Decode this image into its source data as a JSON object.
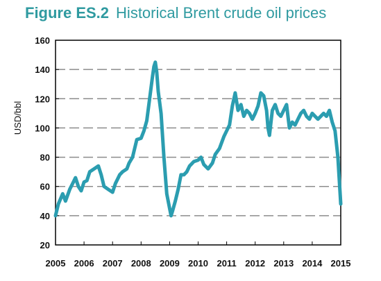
{
  "figure": {
    "number": "Figure ES.2",
    "title": "Historical Brent crude oil prices"
  },
  "colors": {
    "line": "#2b9db0",
    "title": "#2f9aa0",
    "grid": "#8c8c8c",
    "frame": "#000000"
  },
  "chart_data": {
    "type": "line",
    "title": "Historical Brent crude oil prices",
    "xlabel": "",
    "ylabel": "USD/bbl",
    "xlim": [
      2005,
      2015
    ],
    "ylim": [
      20,
      160
    ],
    "x_ticks": [
      "2005",
      "2006",
      "2007",
      "2008",
      "2009",
      "2010",
      "2011",
      "2012",
      "2013",
      "2014",
      "2015"
    ],
    "y_ticks": [
      "20",
      "40",
      "60",
      "80",
      "100",
      "120",
      "140",
      "160"
    ],
    "grid": "horizontal dashed",
    "legend": "none",
    "series": [
      {
        "x": [
          2005.0,
          2005.1,
          2005.25,
          2005.35,
          2005.5,
          2005.6,
          2005.7,
          2005.8,
          2005.9,
          2006.0,
          2006.1,
          2006.2,
          2006.35,
          2006.5,
          2006.6,
          2006.7,
          2006.85,
          2007.0,
          2007.1,
          2007.25,
          2007.35,
          2007.5,
          2007.58,
          2007.7,
          2007.85,
          2008.0,
          2008.1,
          2008.2,
          2008.3,
          2008.4,
          2008.45,
          2008.5,
          2008.55,
          2008.6,
          2008.7,
          2008.8,
          2008.9,
          2009.0,
          2009.05,
          2009.1,
          2009.2,
          2009.3,
          2009.4,
          2009.5,
          2009.6,
          2009.7,
          2009.85,
          2010.0,
          2010.1,
          2010.2,
          2010.35,
          2010.5,
          2010.6,
          2010.75,
          2010.9,
          2011.0,
          2011.1,
          2011.2,
          2011.3,
          2011.4,
          2011.5,
          2011.6,
          2011.7,
          2011.8,
          2011.9,
          2012.0,
          2012.1,
          2012.2,
          2012.3,
          2012.4,
          2012.45,
          2012.5,
          2012.6,
          2012.7,
          2012.8,
          2012.9,
          2013.0,
          2013.1,
          2013.2,
          2013.3,
          2013.4,
          2013.5,
          2013.6,
          2013.7,
          2013.8,
          2013.9,
          2014.0,
          2014.1,
          2014.2,
          2014.3,
          2014.4,
          2014.5,
          2014.6,
          2014.7,
          2014.8,
          2014.9,
          2015.0
        ],
        "y": [
          40,
          48,
          55,
          50,
          58,
          62,
          66,
          60,
          57,
          63,
          64,
          70,
          72,
          74,
          68,
          60,
          58,
          56,
          62,
          68,
          70,
          72,
          76,
          80,
          92,
          93,
          98,
          105,
          120,
          135,
          142,
          145,
          138,
          125,
          110,
          80,
          55,
          45,
          40,
          43,
          50,
          58,
          68,
          68,
          70,
          74,
          77,
          78,
          80,
          75,
          72,
          76,
          82,
          86,
          94,
          98,
          102,
          115,
          124,
          112,
          116,
          108,
          112,
          110,
          106,
          110,
          115,
          124,
          122,
          112,
          100,
          95,
          112,
          116,
          110,
          108,
          112,
          116,
          100,
          104,
          102,
          106,
          110,
          112,
          108,
          106,
          110,
          108,
          106,
          108,
          110,
          108,
          112,
          104,
          98,
          80,
          48
        ]
      }
    ]
  }
}
